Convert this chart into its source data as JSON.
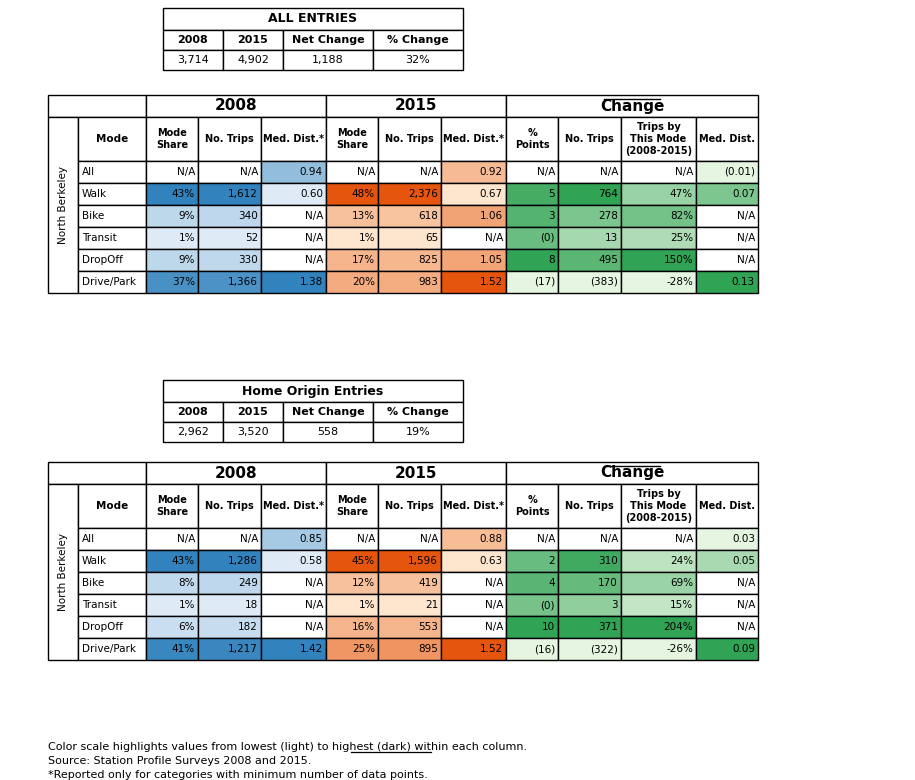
{
  "title1": "ALL ENTRIES",
  "summary1": {
    "2008": "3,714",
    "2015": "4,902",
    "net_change": "1,188",
    "pct_change": "32%"
  },
  "title2": "Home Origin Entries",
  "summary2": {
    "2008": "2,962",
    "2015": "3,520",
    "net_change": "558",
    "pct_change": "19%"
  },
  "table1_data": [
    [
      "All",
      "N/A",
      "N/A",
      "0.94",
      "N/A",
      "N/A",
      "0.92",
      "N/A",
      "N/A",
      "N/A",
      "(0.01)"
    ],
    [
      "Walk",
      "43%",
      "1,612",
      "0.60",
      "48%",
      "2,376",
      "0.67",
      "5",
      "764",
      "47%",
      "0.07"
    ],
    [
      "Bike",
      "9%",
      "340",
      "N/A",
      "13%",
      "618",
      "1.06",
      "3",
      "278",
      "82%",
      "N/A"
    ],
    [
      "Transit",
      "1%",
      "52",
      "N/A",
      "1%",
      "65",
      "N/A",
      "(0)",
      "13",
      "25%",
      "N/A"
    ],
    [
      "DropOff",
      "9%",
      "330",
      "N/A",
      "17%",
      "825",
      "1.05",
      "8",
      "495",
      "150%",
      "N/A"
    ],
    [
      "Drive/Park",
      "37%",
      "1,366",
      "1.38",
      "20%",
      "983",
      "1.52",
      "(17)",
      "(383)",
      "-28%",
      "0.13"
    ]
  ],
  "table2_data": [
    [
      "All",
      "N/A",
      "N/A",
      "0.85",
      "N/A",
      "N/A",
      "0.88",
      "N/A",
      "N/A",
      "N/A",
      "0.03"
    ],
    [
      "Walk",
      "43%",
      "1,286",
      "0.58",
      "45%",
      "1,596",
      "0.63",
      "2",
      "310",
      "24%",
      "0.05"
    ],
    [
      "Bike",
      "8%",
      "249",
      "N/A",
      "12%",
      "419",
      "N/A",
      "4",
      "170",
      "69%",
      "N/A"
    ],
    [
      "Transit",
      "1%",
      "18",
      "N/A",
      "1%",
      "21",
      "N/A",
      "(0)",
      "3",
      "15%",
      "N/A"
    ],
    [
      "DropOff",
      "6%",
      "182",
      "N/A",
      "16%",
      "553",
      "N/A",
      "10",
      "371",
      "204%",
      "N/A"
    ],
    [
      "Drive/Park",
      "41%",
      "1,217",
      "1.42",
      "25%",
      "895",
      "1.52",
      "(16)",
      "(322)",
      "-26%",
      "0.09"
    ]
  ],
  "footnote1_before": "Color scale highlights values from lowest (light) to highest (dark) ",
  "footnote1_underline": "within each column",
  "footnote1_after": ".",
  "footnote2": "Source: Station Profile Surveys 2008 and 2015.",
  "footnote3": "*Reported only for categories with minimum number of data points."
}
